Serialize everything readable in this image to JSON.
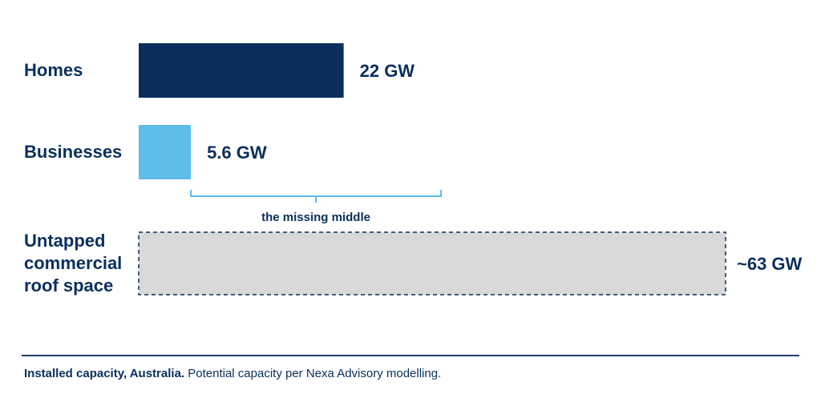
{
  "chart_data": {
    "type": "hbar",
    "categories": [
      "Homes",
      "Businesses",
      "Untapped commercial roof space"
    ],
    "values": [
      22,
      5.6,
      63
    ],
    "value_labels": [
      "22 GW",
      "5.6 GW",
      "~63 GW"
    ],
    "colors": [
      "#0a2f5c",
      "#5bbde8",
      "#d9d9d9"
    ],
    "estimated": [
      false,
      false,
      true
    ],
    "annotation": {
      "text": "the missing middle",
      "color": "#5bbde8"
    },
    "footnote": {
      "lead": "Installed capacity, Australia.",
      "text": "Potential capacity per Nexa Advisory modelling."
    }
  }
}
